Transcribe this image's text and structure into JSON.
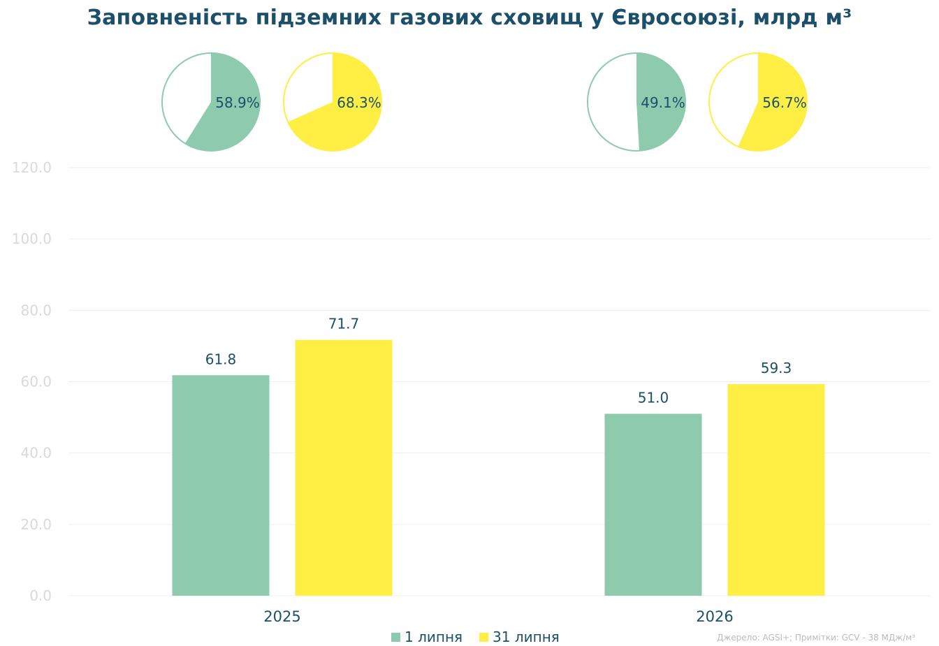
{
  "title": "Заповненість підземних газових сховищ у Євросоюзі, млрд м³",
  "source_note": "Джерело: AGSI+; Примітки: GCV - 38 МДж/м³",
  "colors": {
    "series_1": "#8ecaad",
    "series_2": "#ffee44",
    "title": "#1c4f69",
    "axis_text": "#d7d9db",
    "grid": "#efefef"
  },
  "legend": {
    "items": [
      {
        "label": "1 липня",
        "color": "#8ecaad"
      },
      {
        "label": "31 липня",
        "color": "#ffee44"
      }
    ]
  },
  "chart_data": {
    "type": "bar",
    "categories": [
      "2025",
      "2026"
    ],
    "series": [
      {
        "name": "1 липня",
        "values": [
          61.8,
          51.0
        ],
        "labels": [
          "61.8",
          "51.0"
        ],
        "color": "#8ecaad"
      },
      {
        "name": "31 липня",
        "values": [
          71.7,
          59.3
        ],
        "labels": [
          "71.7",
          "59.3"
        ],
        "color": "#ffee44"
      }
    ],
    "ylim": [
      0,
      120
    ],
    "yticks": [
      "0.0",
      "20.0",
      "40.0",
      "60.0",
      "80.0",
      "100.0",
      "120.0"
    ],
    "grid": true,
    "legend_position": "bottom-center",
    "pies": [
      {
        "category": "2025",
        "series": "1 липня",
        "percent": 58.9,
        "label": "58.9%",
        "color": "#8ecaad"
      },
      {
        "category": "2025",
        "series": "31 липня",
        "percent": 68.3,
        "label": "68.3%",
        "color": "#ffee44"
      },
      {
        "category": "2026",
        "series": "1 липня",
        "percent": 49.1,
        "label": "49.1%",
        "color": "#8ecaad"
      },
      {
        "category": "2026",
        "series": "31 липня",
        "percent": 56.7,
        "label": "56.7%",
        "color": "#ffee44"
      }
    ]
  }
}
